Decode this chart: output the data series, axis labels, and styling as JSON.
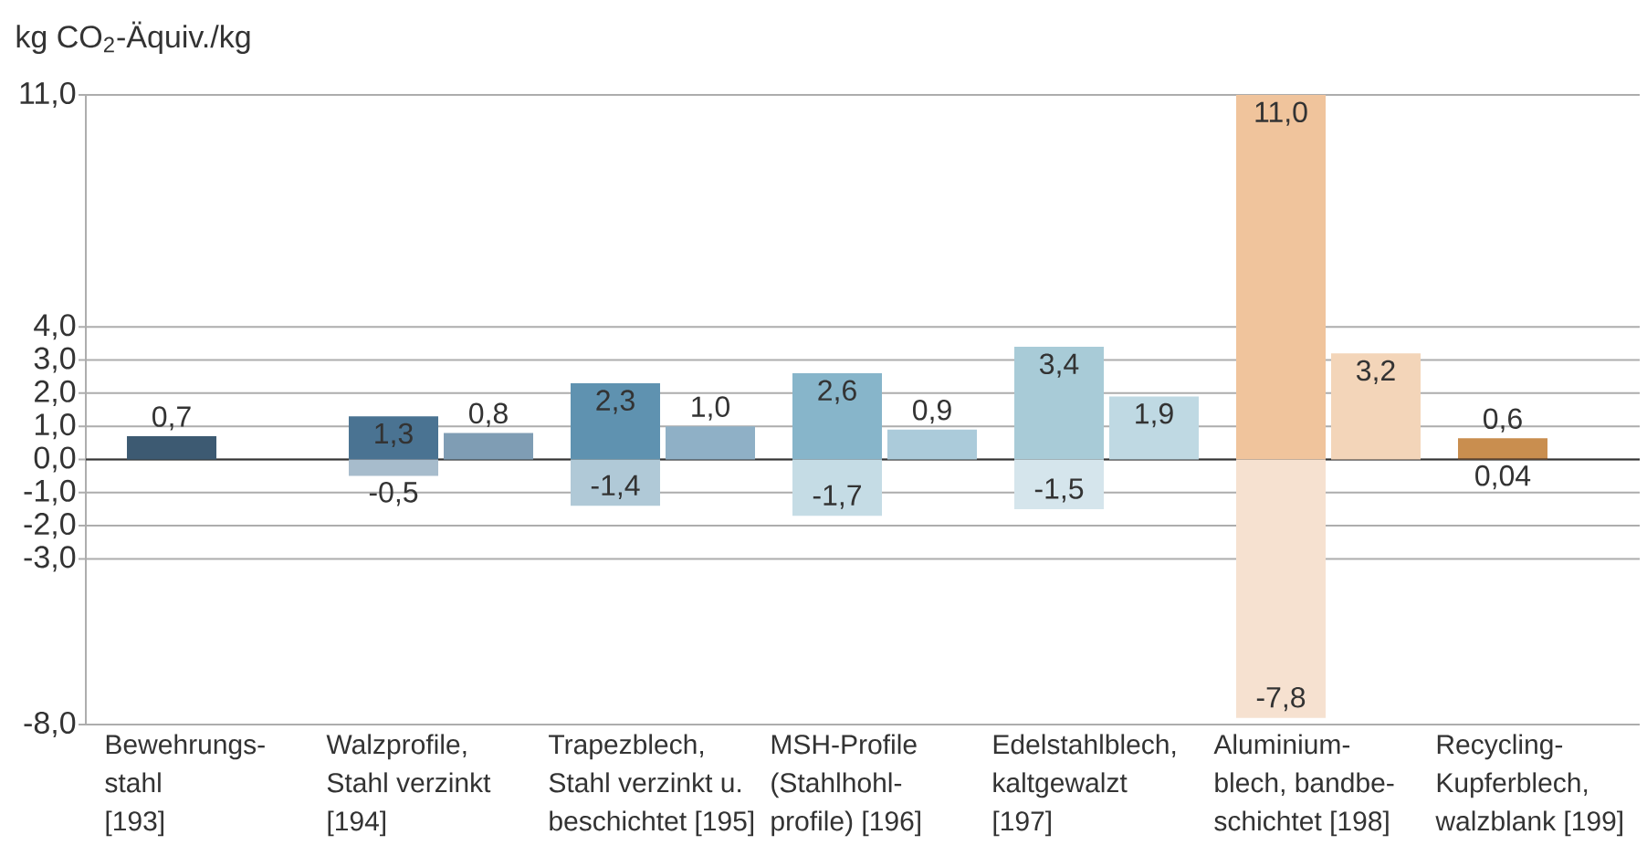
{
  "chart_data": {
    "type": "bar",
    "ylabel": "kg CO$_{2}$-Äquiv./kg",
    "categories": [
      "Bewehrungs-\nstahl\n[193]",
      "Walzprofile,\nStahl verzinkt\n[194]",
      "Trapezblech,\nStahl verzinkt u.\nbeschichtet [195]",
      "MSH-Profile\n(Stahlhohl-\nprofile) [196]",
      "Edelstahlblech,\nkaltgewalzt\n[197]",
      "Aluminium-\nblech, bandbe-\nschichtet [198]",
      "Recycling-\nKupferblech,\nwalzblank [199]"
    ],
    "series": [
      {
        "values": [
          0.7,
          1.3,
          2.3,
          2.6,
          3.4,
          11.0,
          0.6
        ],
        "base": [
          0,
          0,
          0,
          0,
          0,
          0,
          0.04
        ],
        "colors": [
          "#3d5a72",
          "#4a7392",
          "#5f92b0",
          "#87b5ca",
          "#a8cbd7",
          "#f0c49c",
          "#c98e4f"
        ],
        "value_labels": [
          "0,7",
          "1,3",
          "2,3",
          "2,6",
          "3,4",
          "11,0",
          "0,6"
        ]
      },
      {
        "values": [
          null,
          -0.5,
          -1.4,
          -1.7,
          -1.5,
          -7.8,
          0.04
        ],
        "colors": [
          null,
          "#a7bccc",
          "#b0c9d7",
          "#c5dce5",
          "#d5e5ec",
          "#f6e1d0",
          "#7a5636"
        ],
        "value_labels": [
          null,
          "-0,5",
          "-1,4",
          "-1,7",
          "-1,5",
          "-7,8",
          "0,04"
        ]
      },
      {
        "values": [
          null,
          0.8,
          1.0,
          0.9,
          1.9,
          3.2,
          null
        ],
        "colors": [
          null,
          "#7f9db4",
          "#8fb0c6",
          "#abcbda",
          "#bfd9e3",
          "#f3d5b9",
          null
        ],
        "value_labels": [
          null,
          "0,8",
          "1,0",
          "0,9",
          "1,9",
          "3,2",
          null
        ]
      }
    ],
    "ylim": [
      -8,
      11
    ],
    "yticks": [
      {
        "value": -8,
        "label": "-8,0"
      },
      {
        "value": -3,
        "label": "-3,0"
      },
      {
        "value": -2,
        "label": "-2,0"
      },
      {
        "value": -1,
        "label": "-1,0"
      },
      {
        "value": 0,
        "label": "0,0"
      },
      {
        "value": 1,
        "label": "1,0"
      },
      {
        "value": 2,
        "label": "2,0"
      },
      {
        "value": 3,
        "label": "3,0"
      },
      {
        "value": 4,
        "label": "4,0"
      },
      {
        "value": 11,
        "label": "11,0"
      }
    ],
    "grid": "y"
  }
}
